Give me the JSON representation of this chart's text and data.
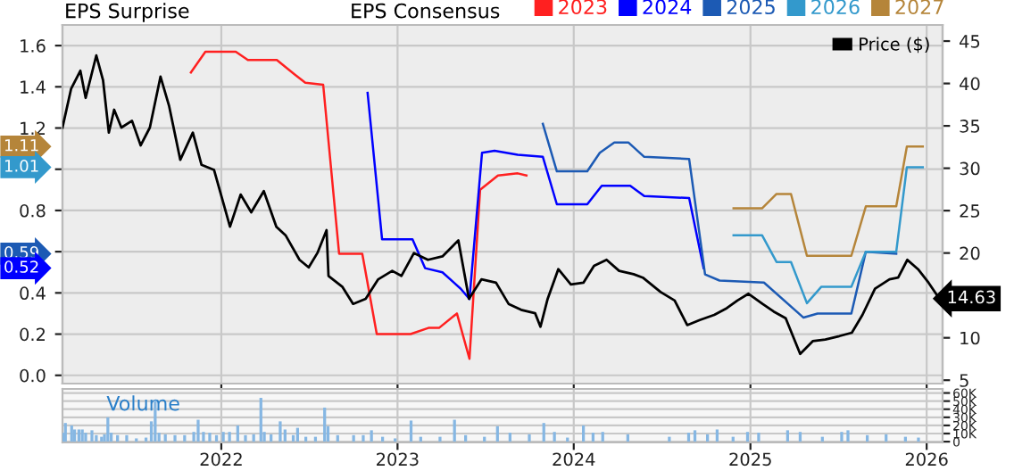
{
  "chart_data": [
    {
      "type": "line",
      "ylabel": "EPS Surprise",
      "legend_title": "EPS Consensus",
      "legend": "top",
      "xlim": [
        "2021-02-06",
        "2026-02-03"
      ],
      "xticks": [
        {
          "value": "2022-01-01",
          "label": null
        },
        {
          "value": "2023-01-01",
          "label": null
        },
        {
          "value": "2024-01-01",
          "label": null
        },
        {
          "value": "2025-01-01",
          "label": null
        },
        {
          "value": "2026-01-01",
          "label": null
        }
      ],
      "ylim": [
        -0.04,
        1.7
      ],
      "yticks": [
        {
          "value": 0.0,
          "label": "0.0"
        },
        {
          "value": 0.2,
          "label": "0.2"
        },
        {
          "value": 0.4,
          "label": "0.4"
        },
        {
          "value": 0.6,
          "label": null
        },
        {
          "value": 0.8,
          "label": "0.8"
        },
        {
          "value": 1.0,
          "label": null
        },
        {
          "value": 1.2,
          "label": "1.2"
        },
        {
          "value": 1.4,
          "label": "1.4"
        },
        {
          "value": 1.6,
          "label": "1.6"
        }
      ],
      "y2lim": [
        4.6,
        46.9
      ],
      "y2ticks": [
        5,
        10,
        {
          "value": 15,
          "label": null
        },
        20,
        25,
        30,
        35,
        40,
        45
      ],
      "grid": true,
      "tick_labels": "y",
      "annotations": [
        "1.11",
        "1.01",
        "0.59",
        "0.52"
      ],
      "series": [
        {
          "name": "2023",
          "color": "#ff2020",
          "x": [
            "2021-10-30",
            "2021-11-29",
            "2022-01-31",
            "2022-02-25",
            "2022-04-26",
            "2022-06-02",
            "2022-06-24",
            "2022-07-31",
            "2022-09-02",
            "2022-10-20",
            "2022-11-19",
            "2023-01-28",
            "2023-03-06",
            "2023-03-28",
            "2023-05-04",
            "2023-05-30",
            "2023-06-21",
            "2023-07-28",
            "2023-09-07",
            "2023-09-25"
          ],
          "values": [
            1.47,
            1.57,
            1.57,
            1.53,
            1.53,
            1.46,
            1.42,
            1.41,
            0.59,
            0.59,
            0.2,
            0.2,
            0.23,
            0.23,
            0.3,
            0.08,
            0.9,
            0.97,
            0.98,
            0.97
          ]
        },
        {
          "name": "2024",
          "color": "#0000ff",
          "x": [
            "2022-10-31",
            "2022-11-30",
            "2023-02-01",
            "2023-02-27",
            "2023-04-04",
            "2023-05-12",
            "2023-05-30",
            "2023-06-25",
            "2023-07-21",
            "2023-09-07",
            "2023-10-29",
            "2023-11-27",
            "2024-01-29",
            "2024-02-28",
            "2024-04-27",
            "2024-05-26",
            "2024-08-27",
            "2024-09-26"
          ],
          "values": [
            1.37,
            0.66,
            0.66,
            0.52,
            0.5,
            0.42,
            0.37,
            1.08,
            1.09,
            1.07,
            1.06,
            0.83,
            0.83,
            0.92,
            0.92,
            0.87,
            0.86,
            0.52
          ]
        },
        {
          "name": "2025",
          "color": "#1c5ab4",
          "x": [
            "2023-10-29",
            "2023-11-27",
            "2024-01-29",
            "2024-02-24",
            "2024-03-25",
            "2024-04-23",
            "2024-05-26",
            "2024-08-27",
            "2024-09-29",
            "2024-10-29",
            "2025-01-29",
            "2025-04-21",
            "2025-05-20",
            "2025-07-29",
            "2025-08-28",
            "2025-10-30"
          ],
          "values": [
            1.22,
            0.99,
            0.99,
            1.08,
            1.13,
            1.13,
            1.06,
            1.05,
            0.49,
            0.46,
            0.45,
            0.28,
            0.3,
            0.3,
            0.6,
            0.59
          ]
        },
        {
          "name": "2026",
          "color": "#3399cc",
          "x": [
            "2024-11-27",
            "2025-01-25",
            "2025-02-24",
            "2025-03-26",
            "2025-04-28",
            "2025-05-28",
            "2025-07-29",
            "2025-08-28",
            "2025-10-30",
            "2025-11-21",
            "2025-12-24"
          ],
          "values": [
            0.68,
            0.68,
            0.55,
            0.55,
            0.35,
            0.43,
            0.43,
            0.6,
            0.6,
            1.01,
            1.01
          ]
        },
        {
          "name": "2027",
          "color": "#b5853a",
          "x": [
            "2024-11-27",
            "2025-01-25",
            "2025-02-24",
            "2025-03-26",
            "2025-04-28",
            "2025-07-29",
            "2025-08-28",
            "2025-10-30",
            "2025-11-21",
            "2025-12-24"
          ],
          "values": [
            0.81,
            0.81,
            0.88,
            0.88,
            0.58,
            0.58,
            0.82,
            0.82,
            1.11,
            1.11
          ]
        },
        {
          "name": "Price ($)",
          "color": "#000000",
          "axis": "y2",
          "x": [
            "2021-02-06",
            "2021-02-24",
            "2021-03-15",
            "2021-03-26",
            "2021-04-17",
            "2021-05-01",
            "2021-05-13",
            "2021-05-24",
            "2021-06-08",
            "2021-06-30",
            "2021-07-18",
            "2021-08-06",
            "2021-08-28",
            "2021-09-15",
            "2021-10-08",
            "2021-11-03",
            "2021-11-21",
            "2021-12-17",
            "2022-01-19",
            "2022-02-10",
            "2022-03-04",
            "2022-03-30",
            "2022-04-25",
            "2022-05-14",
            "2022-06-12",
            "2022-07-01",
            "2022-07-19",
            "2022-08-07",
            "2022-08-11",
            "2022-09-09",
            "2022-10-01",
            "2022-10-27",
            "2022-11-22",
            "2022-12-21",
            "2023-01-09",
            "2023-02-04",
            "2023-03-05",
            "2023-04-04",
            "2023-05-07",
            "2023-05-29",
            "2023-06-24",
            "2023-07-24",
            "2023-08-19",
            "2023-09-14",
            "2023-10-13",
            "2023-10-24",
            "2023-11-08",
            "2023-11-30",
            "2023-12-26",
            "2024-01-21",
            "2024-02-12",
            "2024-03-09",
            "2024-04-04",
            "2024-05-04",
            "2024-05-23",
            "2024-06-29",
            "2024-07-28",
            "2024-08-23",
            "2024-09-18",
            "2024-10-18",
            "2024-11-13",
            "2024-12-05",
            "2024-12-28",
            "2025-01-26",
            "2025-02-18",
            "2025-03-15",
            "2025-03-30",
            "2025-04-14",
            "2025-05-10",
            "2025-06-05",
            "2025-07-04",
            "2025-07-30",
            "2025-08-21",
            "2025-09-16",
            "2025-10-16",
            "2025-11-03",
            "2025-11-22",
            "2025-12-14",
            "2026-01-05",
            "2026-01-27"
          ],
          "values": [
            34.8,
            39.4,
            41.5,
            38.3,
            43.3,
            40.4,
            34.2,
            36.9,
            34.8,
            35.6,
            32.7,
            34.8,
            40.8,
            37.3,
            31.0,
            34.2,
            30.4,
            29.8,
            23.1,
            26.9,
            24.8,
            27.3,
            23.1,
            22.1,
            19.2,
            18.3,
            20.0,
            22.7,
            17.3,
            16.0,
            14.0,
            14.6,
            16.9,
            17.9,
            17.3,
            20.0,
            19.2,
            19.6,
            21.5,
            14.6,
            16.9,
            16.5,
            14.0,
            13.3,
            12.9,
            11.3,
            14.6,
            18.1,
            16.3,
            16.5,
            18.5,
            19.2,
            17.9,
            17.5,
            17.1,
            15.4,
            14.4,
            11.5,
            12.1,
            12.7,
            13.5,
            14.4,
            15.2,
            14.0,
            13.1,
            12.3,
            10.2,
            8.1,
            9.6,
            9.8,
            10.2,
            10.6,
            12.7,
            15.8,
            16.9,
            17.1,
            19.2,
            18.1,
            16.5,
            14.63
          ],
          "value_labels": [
            null,
            null,
            null,
            null,
            null,
            null,
            null,
            null,
            null,
            null,
            null,
            null,
            null,
            null,
            null,
            null,
            null,
            null,
            null,
            null,
            null,
            null,
            null,
            null,
            null,
            null,
            null,
            null,
            null,
            null,
            null,
            null,
            null,
            null,
            null,
            null,
            null,
            null,
            null,
            null,
            null,
            null,
            null,
            null,
            null,
            null,
            null,
            null,
            null,
            null,
            null,
            null,
            null,
            null,
            null,
            null,
            null,
            null,
            null,
            null,
            null,
            null,
            null,
            null,
            null,
            null,
            null,
            null,
            null,
            null,
            null,
            null,
            null,
            null,
            null,
            null,
            null,
            null,
            null,
            "14.63"
          ]
        }
      ]
    },
    {
      "type": "bar",
      "ylabel": "Volume",
      "color": "#86b7e3",
      "xlim": [
        "2021-02-06",
        "2026-02-03"
      ],
      "xticks": [
        {
          "value": "2022-01-01",
          "label": "2022"
        },
        {
          "value": "2023-01-01",
          "label": "2023"
        },
        {
          "value": "2024-01-01",
          "label": "2024"
        },
        {
          "value": "2025-01-01",
          "label": "2025"
        },
        {
          "value": "2026-01-01",
          "label": "2026"
        }
      ],
      "ylim": [
        -1000,
        65000
      ],
      "yticks": [
        {
          "value": 0,
          "label": "0"
        },
        {
          "value": 10000,
          "label": "10K"
        },
        {
          "value": 20000,
          "label": "20K"
        },
        {
          "value": 30000,
          "label": "30K"
        },
        {
          "value": 40000,
          "label": "40K"
        },
        {
          "value": 50000,
          "label": "50K"
        },
        {
          "value": 60000,
          "label": "60K"
        }
      ],
      "grid": true,
      "x": [
        "2021-02-08",
        "2021-02-12",
        "2021-02-25",
        "2021-03-03",
        "2021-03-12",
        "2021-03-19",
        "2021-03-26",
        "2021-04-08",
        "2021-04-17",
        "2021-04-28",
        "2021-05-04",
        "2021-05-11",
        "2021-05-18",
        "2021-05-31",
        "2021-06-19",
        "2021-07-09",
        "2021-07-29",
        "2021-08-09",
        "2021-08-17",
        "2021-08-25",
        "2021-09-07",
        "2021-09-27",
        "2021-10-17",
        "2021-11-05",
        "2021-11-14",
        "2021-11-25",
        "2021-12-08",
        "2021-12-22",
        "2022-01-05",
        "2022-01-18",
        "2022-02-04",
        "2022-02-20",
        "2022-03-09",
        "2022-03-24",
        "2022-03-31",
        "2022-04-14",
        "2022-05-03",
        "2022-05-13",
        "2022-05-30",
        "2022-06-08",
        "2022-06-25",
        "2022-07-15",
        "2022-08-03",
        "2022-08-10",
        "2022-08-30",
        "2022-10-02",
        "2022-10-22",
        "2022-11-08",
        "2022-12-01",
        "2022-12-27",
        "2023-01-29",
        "2023-02-18",
        "2023-03-30",
        "2023-04-29",
        "2023-05-22",
        "2023-06-30",
        "2023-07-27",
        "2023-08-22",
        "2023-10-01",
        "2023-10-31",
        "2023-11-22",
        "2023-12-19",
        "2024-01-21",
        "2024-02-10",
        "2024-03-01",
        "2024-04-22",
        "2024-07-17",
        "2024-08-26",
        "2024-09-08",
        "2024-10-04",
        "2024-10-24",
        "2024-11-26",
        "2024-12-26",
        "2025-01-18",
        "2025-03-19",
        "2025-04-14",
        "2025-05-30",
        "2025-07-09",
        "2025-07-22",
        "2025-08-31",
        "2025-10-09",
        "2025-11-18",
        "2025-12-15"
      ],
      "values": [
        11000,
        23000,
        20000,
        15000,
        15000,
        15000,
        11000,
        14000,
        8000,
        6000,
        9000,
        30000,
        11000,
        8000,
        8000,
        4000,
        5000,
        25000,
        51000,
        11000,
        9000,
        8000,
        8000,
        12000,
        27000,
        12000,
        11000,
        8000,
        12000,
        12000,
        20000,
        8000,
        9000,
        54000,
        12000,
        9000,
        25000,
        15000,
        8000,
        17000,
        6000,
        6000,
        42000,
        19000,
        8000,
        8000,
        8000,
        14000,
        6000,
        4000,
        26000,
        6000,
        6000,
        27000,
        8000,
        6000,
        19000,
        11000,
        9000,
        23000,
        12000,
        5000,
        20000,
        11000,
        12000,
        9000,
        6000,
        11000,
        14000,
        9000,
        15000,
        6000,
        12000,
        11000,
        14000,
        12000,
        6000,
        12000,
        14000,
        8000,
        9000,
        6000,
        5000
      ]
    }
  ]
}
